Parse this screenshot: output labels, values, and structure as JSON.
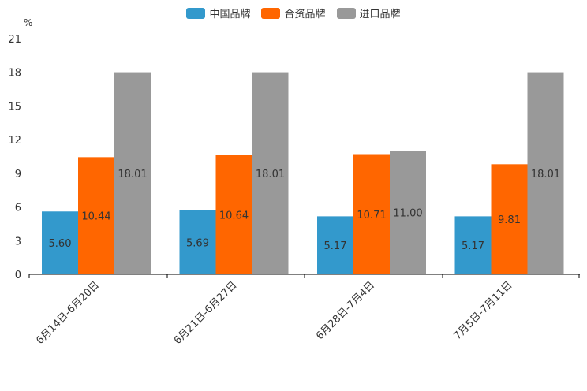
{
  "chart_data": {
    "type": "bar",
    "unit": "%",
    "categories": [
      "6月14日-6月20日",
      "6月21日-6月27日",
      "6月28日-7月4日",
      "7月5日-7月11日"
    ],
    "series": [
      {
        "name": "中国品牌",
        "color": "#3399cc",
        "values": [
          5.6,
          5.69,
          5.17,
          5.17
        ],
        "labels": [
          "5.60",
          "5.69",
          "5.17",
          "5.17"
        ]
      },
      {
        "name": "合资品牌",
        "color": "#ff6600",
        "values": [
          10.44,
          10.64,
          10.71,
          9.81
        ],
        "labels": [
          "10.44",
          "10.64",
          "10.71",
          "9.81"
        ]
      },
      {
        "name": "进口品牌",
        "color": "#999999",
        "values": [
          18.01,
          18.01,
          11.0,
          18.01
        ],
        "labels": [
          "18.01",
          "18.01",
          "11.00",
          "18.01"
        ]
      }
    ],
    "yticks": [
      0,
      3,
      6,
      9,
      12,
      15,
      18,
      21
    ],
    "ylim": [
      0,
      21
    ]
  }
}
